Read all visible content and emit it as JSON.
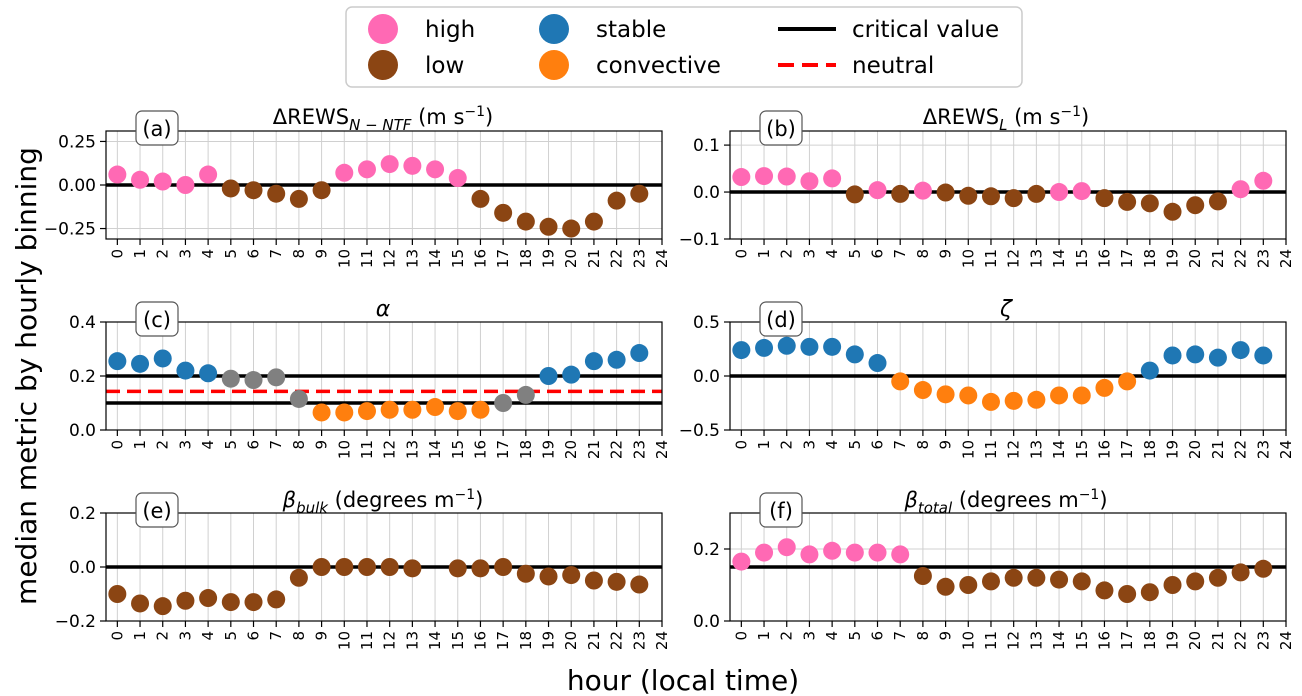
{
  "figure": {
    "ylabel": "median metric by hourly binning",
    "xlabel": "hour (local time)",
    "legend": {
      "items": [
        {
          "label": "high",
          "kind": "marker",
          "color": "#ff69b4"
        },
        {
          "label": "low",
          "kind": "marker",
          "color": "#8b4513"
        },
        {
          "label": "stable",
          "kind": "marker",
          "color": "#1f77b4"
        },
        {
          "label": "convective",
          "kind": "marker",
          "color": "#ff7f0e"
        },
        {
          "label": "critical value",
          "kind": "line",
          "color": "#000000"
        },
        {
          "label": "neutral",
          "kind": "dashed-line",
          "color": "#ff0000"
        }
      ]
    }
  },
  "colors": {
    "high": "#ff69b4",
    "low": "#8b4513",
    "stable": "#1f77b4",
    "convective": "#ff7f0e",
    "neutral_gray": "#808080",
    "critical": "#000000",
    "neutral_line": "#ff0000"
  },
  "chart_data": [
    {
      "type": "scatter",
      "panel": "(a)",
      "title": "ΔREWS_{N−NTF} (m s^{−1})",
      "x": [
        0,
        1,
        2,
        3,
        4,
        5,
        6,
        7,
        8,
        9,
        10,
        11,
        12,
        13,
        14,
        15,
        16,
        17,
        18,
        19,
        20,
        21,
        22,
        23
      ],
      "y": [
        0.06,
        0.03,
        0.02,
        0.0,
        0.06,
        -0.02,
        -0.03,
        -0.05,
        -0.08,
        -0.03,
        0.07,
        0.09,
        0.12,
        0.11,
        0.09,
        0.04,
        -0.08,
        -0.16,
        -0.21,
        -0.24,
        -0.25,
        -0.21,
        -0.09,
        -0.05
      ],
      "category": [
        "high",
        "high",
        "high",
        "high",
        "high",
        "low",
        "low",
        "low",
        "low",
        "low",
        "high",
        "high",
        "high",
        "high",
        "high",
        "high",
        "low",
        "low",
        "low",
        "low",
        "low",
        "low",
        "low",
        "low"
      ],
      "xlim": [
        -0.5,
        24
      ],
      "ylim": [
        -0.31,
        0.31
      ],
      "yticks": [
        -0.25,
        0.0,
        0.25
      ],
      "ytick_labels": [
        "−0.25",
        "0.00",
        "0.25"
      ],
      "xticks": [
        0,
        1,
        2,
        3,
        4,
        5,
        6,
        7,
        8,
        9,
        10,
        11,
        12,
        13,
        14,
        15,
        16,
        17,
        18,
        19,
        20,
        21,
        22,
        23,
        24
      ],
      "hlines": [
        {
          "y": 0.0,
          "style": "critical"
        }
      ],
      "grid": true
    },
    {
      "type": "scatter",
      "panel": "(b)",
      "title": "ΔREWS_{L} (m s^{−1})",
      "x": [
        0,
        1,
        2,
        3,
        4,
        5,
        6,
        7,
        8,
        9,
        10,
        11,
        12,
        13,
        14,
        15,
        16,
        17,
        18,
        19,
        20,
        21,
        22,
        23
      ],
      "y": [
        0.032,
        0.034,
        0.033,
        0.023,
        0.029,
        -0.005,
        0.004,
        -0.004,
        0.003,
        -0.001,
        -0.008,
        -0.009,
        -0.013,
        -0.004,
        0.0,
        0.002,
        -0.013,
        -0.021,
        -0.024,
        -0.042,
        -0.028,
        -0.02,
        0.006,
        0.024
      ],
      "category": [
        "high",
        "high",
        "high",
        "high",
        "high",
        "low",
        "high",
        "low",
        "high",
        "low",
        "low",
        "low",
        "low",
        "low",
        "high",
        "high",
        "low",
        "low",
        "low",
        "low",
        "low",
        "low",
        "high",
        "high"
      ],
      "xlim": [
        -0.5,
        24
      ],
      "ylim": [
        -0.1,
        0.13
      ],
      "yticks": [
        -0.1,
        0.0,
        0.1
      ],
      "ytick_labels": [
        "−0.1",
        "0.0",
        "0.1"
      ],
      "xticks": [
        0,
        1,
        2,
        3,
        4,
        5,
        6,
        7,
        8,
        9,
        10,
        11,
        12,
        13,
        14,
        15,
        16,
        17,
        18,
        19,
        20,
        21,
        22,
        23,
        24
      ],
      "hlines": [
        {
          "y": 0.0,
          "style": "critical"
        }
      ],
      "grid": true
    },
    {
      "type": "scatter",
      "panel": "(c)",
      "title": "α",
      "x": [
        0,
        1,
        2,
        3,
        4,
        5,
        6,
        7,
        8,
        9,
        10,
        11,
        12,
        13,
        14,
        15,
        16,
        17,
        18,
        19,
        20,
        21,
        22,
        23
      ],
      "y": [
        0.255,
        0.245,
        0.265,
        0.22,
        0.21,
        0.19,
        0.185,
        0.195,
        0.115,
        0.065,
        0.065,
        0.07,
        0.075,
        0.075,
        0.085,
        0.07,
        0.075,
        0.1,
        0.13,
        0.2,
        0.205,
        0.255,
        0.26,
        0.285
      ],
      "category": [
        "stable",
        "stable",
        "stable",
        "stable",
        "stable",
        "neutral_gray",
        "neutral_gray",
        "neutral_gray",
        "neutral_gray",
        "convective",
        "convective",
        "convective",
        "convective",
        "convective",
        "convective",
        "convective",
        "convective",
        "neutral_gray",
        "neutral_gray",
        "stable",
        "stable",
        "stable",
        "stable",
        "stable"
      ],
      "xlim": [
        -0.5,
        24
      ],
      "ylim": [
        0.0,
        0.4
      ],
      "yticks": [
        0.0,
        0.2,
        0.4
      ],
      "ytick_labels": [
        "0.0",
        "0.2",
        "0.4"
      ],
      "xticks": [
        0,
        1,
        2,
        3,
        4,
        5,
        6,
        7,
        8,
        9,
        10,
        11,
        12,
        13,
        14,
        15,
        16,
        17,
        18,
        19,
        20,
        21,
        22,
        23,
        24
      ],
      "hlines": [
        {
          "y": 0.2,
          "style": "critical"
        },
        {
          "y": 0.1,
          "style": "critical"
        },
        {
          "y": 0.143,
          "style": "neutral"
        }
      ],
      "grid": true
    },
    {
      "type": "scatter",
      "panel": "(d)",
      "title": "ζ",
      "x": [
        0,
        1,
        2,
        3,
        4,
        5,
        6,
        7,
        8,
        9,
        10,
        11,
        12,
        13,
        14,
        15,
        16,
        17,
        18,
        19,
        20,
        21,
        22,
        23
      ],
      "y": [
        0.24,
        0.26,
        0.28,
        0.27,
        0.27,
        0.2,
        0.12,
        -0.05,
        -0.13,
        -0.17,
        -0.18,
        -0.24,
        -0.23,
        -0.22,
        -0.18,
        -0.18,
        -0.11,
        -0.05,
        0.05,
        0.19,
        0.2,
        0.17,
        0.24,
        0.19
      ],
      "category": [
        "stable",
        "stable",
        "stable",
        "stable",
        "stable",
        "stable",
        "stable",
        "convective",
        "convective",
        "convective",
        "convective",
        "convective",
        "convective",
        "convective",
        "convective",
        "convective",
        "convective",
        "convective",
        "stable",
        "stable",
        "stable",
        "stable",
        "stable",
        "stable"
      ],
      "xlim": [
        -0.5,
        24
      ],
      "ylim": [
        -0.5,
        0.5
      ],
      "yticks": [
        -0.5,
        0.0,
        0.5
      ],
      "ytick_labels": [
        "−0.5",
        "0.0",
        "0.5"
      ],
      "xticks": [
        0,
        1,
        2,
        3,
        4,
        5,
        6,
        7,
        8,
        9,
        10,
        11,
        12,
        13,
        14,
        15,
        16,
        17,
        18,
        19,
        20,
        21,
        22,
        23,
        24
      ],
      "hlines": [
        {
          "y": 0.0,
          "style": "critical"
        }
      ],
      "grid": true
    },
    {
      "type": "scatter",
      "panel": "(e)",
      "title": "β_{bulk} (degrees m^{−1})",
      "x": [
        0,
        1,
        2,
        3,
        4,
        5,
        6,
        7,
        8,
        9,
        10,
        11,
        12,
        13,
        15,
        16,
        17,
        18,
        19,
        20,
        21,
        22,
        23
      ],
      "y": [
        -0.1,
        -0.135,
        -0.145,
        -0.125,
        -0.115,
        -0.13,
        -0.13,
        -0.12,
        -0.04,
        0.0,
        0.0,
        0.0,
        0.0,
        -0.005,
        -0.005,
        -0.005,
        0.0,
        -0.025,
        -0.035,
        -0.03,
        -0.05,
        -0.055,
        -0.065
      ],
      "category": [
        "low",
        "low",
        "low",
        "low",
        "low",
        "low",
        "low",
        "low",
        "low",
        "low",
        "low",
        "low",
        "low",
        "low",
        "low",
        "low",
        "low",
        "low",
        "low",
        "low",
        "low",
        "low",
        "low"
      ],
      "xlim": [
        -0.5,
        24
      ],
      "ylim": [
        -0.2,
        0.2
      ],
      "yticks": [
        -0.2,
        0.0,
        0.2
      ],
      "ytick_labels": [
        "−0.2",
        "0.0",
        "0.2"
      ],
      "xticks": [
        0,
        1,
        2,
        3,
        4,
        5,
        6,
        7,
        8,
        9,
        10,
        11,
        12,
        13,
        14,
        15,
        16,
        17,
        18,
        19,
        20,
        21,
        22,
        23,
        24
      ],
      "hlines": [
        {
          "y": 0.0,
          "style": "critical"
        }
      ],
      "grid": true
    },
    {
      "type": "scatter",
      "panel": "(f)",
      "title": "β_{total} (degrees m^{−1})",
      "x": [
        0,
        1,
        2,
        3,
        4,
        5,
        6,
        7,
        8,
        9,
        10,
        11,
        12,
        13,
        14,
        15,
        16,
        17,
        18,
        19,
        20,
        21,
        22,
        23
      ],
      "y": [
        0.165,
        0.19,
        0.205,
        0.185,
        0.195,
        0.19,
        0.19,
        0.185,
        0.125,
        0.095,
        0.1,
        0.11,
        0.12,
        0.12,
        0.115,
        0.11,
        0.085,
        0.075,
        0.08,
        0.1,
        0.11,
        0.12,
        0.135,
        0.145
      ],
      "category": [
        "high",
        "high",
        "high",
        "high",
        "high",
        "high",
        "high",
        "high",
        "low",
        "low",
        "low",
        "low",
        "low",
        "low",
        "low",
        "low",
        "low",
        "low",
        "low",
        "low",
        "low",
        "low",
        "low",
        "low"
      ],
      "xlim": [
        -0.5,
        24
      ],
      "ylim": [
        0.0,
        0.3
      ],
      "yticks": [
        0.0,
        0.2
      ],
      "ytick_labels": [
        "0.0",
        "0.2"
      ],
      "xticks": [
        0,
        1,
        2,
        3,
        4,
        5,
        6,
        7,
        8,
        9,
        10,
        11,
        12,
        13,
        14,
        15,
        16,
        17,
        18,
        19,
        20,
        21,
        22,
        23,
        24
      ],
      "hlines": [
        {
          "y": 0.15,
          "style": "critical"
        }
      ],
      "grid": true
    }
  ]
}
